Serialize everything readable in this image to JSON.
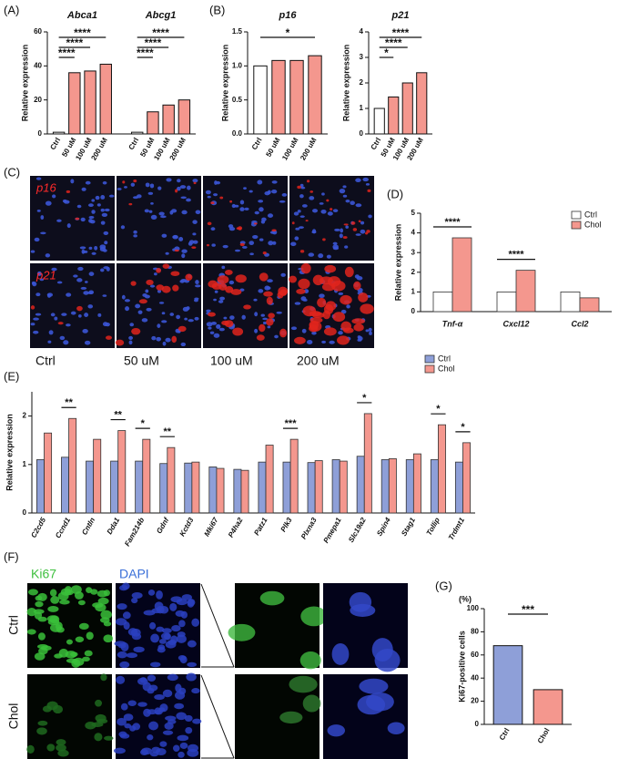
{
  "chart_data": [
    {
      "type": "bar",
      "panel": "(A)",
      "ylabel": "Relative expression",
      "categories": [
        "Ctrl",
        "50 uM",
        "100 uM",
        "200 uM"
      ],
      "colors": [
        "#ffffff",
        "#f4978e",
        "#f4978e",
        "#f4978e"
      ],
      "ylim": [
        0,
        60
      ],
      "yticks": [
        0,
        20,
        40,
        60
      ],
      "groups": [
        {
          "title": "Abca1",
          "values": [
            1,
            36,
            37,
            41
          ],
          "significance": [
            {
              "label": "****",
              "compare": [
                "Ctrl",
                "50 uM"
              ]
            },
            {
              "label": "****",
              "compare": [
                "Ctrl",
                "100 uM"
              ]
            },
            {
              "label": "****",
              "compare": [
                "Ctrl",
                "200 uM"
              ]
            }
          ]
        },
        {
          "title": "Abcg1",
          "values": [
            1,
            13,
            17,
            20
          ],
          "significance": [
            {
              "label": "****",
              "compare": [
                "Ctrl",
                "50 uM"
              ]
            },
            {
              "label": "****",
              "compare": [
                "Ctrl",
                "100 uM"
              ]
            },
            {
              "label": "****",
              "compare": [
                "Ctrl",
                "200 uM"
              ]
            }
          ]
        }
      ]
    },
    {
      "type": "bar",
      "panel": "(B)",
      "ylabel": "Relative expression",
      "categories": [
        "Ctrl",
        "50 uM",
        "100 uM",
        "200 uM"
      ],
      "colors": [
        "#ffffff",
        "#f4978e",
        "#f4978e",
        "#f4978e"
      ],
      "ylim": [
        0,
        1.5
      ],
      "yticks": [
        {
          "value": 0,
          "label": "0.0"
        },
        0.5,
        {
          "value": 1,
          "label": "1.0"
        },
        1.5
      ],
      "groups": [
        {
          "title": "p16",
          "values": [
            1.0,
            1.08,
            1.08,
            1.15
          ],
          "significance": [
            {
              "label": "*",
              "compare": [
                "Ctrl",
                "200 uM"
              ]
            }
          ]
        }
      ]
    },
    {
      "type": "bar",
      "ylabel": "Relative expression",
      "categories": [
        "Ctrl",
        "50 uM",
        "100 uM",
        "200 uM"
      ],
      "colors": [
        "#ffffff",
        "#f4978e",
        "#f4978e",
        "#f4978e"
      ],
      "ylim": [
        0,
        4
      ],
      "yticks": [
        0,
        1,
        2,
        3,
        4
      ],
      "groups": [
        {
          "title": "p21",
          "values": [
            1.0,
            1.45,
            2.0,
            2.4
          ],
          "significance": [
            {
              "label": "*",
              "compare": [
                "Ctrl",
                "50 uM"
              ]
            },
            {
              "label": "****",
              "compare": [
                "Ctrl",
                "100 uM"
              ]
            },
            {
              "label": "****",
              "compare": [
                "Ctrl",
                "200 uM"
              ]
            }
          ]
        }
      ]
    },
    {
      "type": "grouped_bar",
      "panel": "(D)",
      "ylabel": "Relative expression",
      "categories": [
        "Tnf-α",
        "Cxcl12",
        "Ccl2"
      ],
      "series": [
        {
          "name": "Ctrl",
          "color": "#ffffff",
          "values": [
            1.0,
            1.0,
            1.0
          ]
        },
        {
          "name": "Chol",
          "color": "#f4978e",
          "values": [
            3.75,
            2.1,
            0.7
          ]
        }
      ],
      "ylim": [
        0,
        5
      ],
      "yticks": [
        0,
        1,
        2,
        3,
        4,
        5
      ],
      "legend": "upper right",
      "significance": [
        {
          "label": "****",
          "category": "Tnf-α"
        },
        {
          "label": "****",
          "category": "Cxcl12"
        }
      ]
    },
    {
      "type": "grouped_bar",
      "panel": "(E)",
      "ylabel": "Relative expression",
      "categories": [
        "C2cd5",
        "Ccnd1",
        "Cntln",
        "Dda1",
        "Fam214b",
        "Gdnf",
        "Kctd3",
        "Mki67",
        "P4ha2",
        "Patz1",
        "Plk3",
        "Plxna3",
        "Pmepa1",
        "Slc19a2",
        "Spin4",
        "Stag1",
        "Tollip",
        "Trdmt1"
      ],
      "series": [
        {
          "name": "Ctrl",
          "color": "#8e9fd8",
          "values": [
            1.1,
            1.15,
            1.07,
            1.07,
            1.07,
            1.02,
            1.03,
            0.95,
            0.9,
            1.05,
            1.05,
            1.04,
            1.1,
            1.17,
            1.1,
            1.1,
            1.1,
            1.05
          ]
        },
        {
          "name": "Chol",
          "color": "#f4978e",
          "values": [
            1.65,
            1.95,
            1.52,
            1.7,
            1.52,
            1.35,
            1.05,
            0.92,
            0.88,
            1.4,
            1.52,
            1.08,
            1.07,
            2.05,
            1.12,
            1.22,
            1.82,
            1.45
          ]
        }
      ],
      "ylim": [
        0,
        2.5
      ],
      "yticks": [
        0,
        1,
        2
      ],
      "legend": "upper right",
      "significance": [
        {
          "label": "**",
          "category": "Ccnd1"
        },
        {
          "label": "**",
          "category": "Dda1"
        },
        {
          "label": "*",
          "category": "Fam214b"
        },
        {
          "label": "**",
          "category": "Gdnf"
        },
        {
          "label": "***",
          "category": "Plk3"
        },
        {
          "label": "*",
          "category": "Slc19a2"
        },
        {
          "label": "*",
          "category": "Tollip"
        },
        {
          "label": "*",
          "category": "Trdmt1"
        }
      ]
    },
    {
      "type": "bar",
      "panel": "(G)",
      "unit": "(%)",
      "ylabel": "Ki67-positive cells",
      "categories": [
        "Ctrl",
        "Chol"
      ],
      "colors": [
        "#8e9fd8",
        "#f4978e"
      ],
      "ylim": [
        0,
        100
      ],
      "yticks": [
        0,
        20,
        40,
        60,
        80,
        100
      ],
      "groups": [
        {
          "values": [
            68,
            30
          ],
          "significance": [
            {
              "label": "***",
              "compare": [
                "Ctrl",
                "Chol"
              ]
            }
          ]
        }
      ]
    }
  ],
  "images": [
    {
      "panel": "(C)",
      "row_labels": [
        "p16",
        "p21"
      ],
      "column_labels": [
        "Ctrl",
        "50 uM",
        "100 uM",
        "200 uM"
      ]
    },
    {
      "panel": "(F)",
      "row_labels": [
        "Ctrl",
        "Chol"
      ],
      "column_labels": [
        "Ki67",
        "DAPI"
      ]
    }
  ]
}
